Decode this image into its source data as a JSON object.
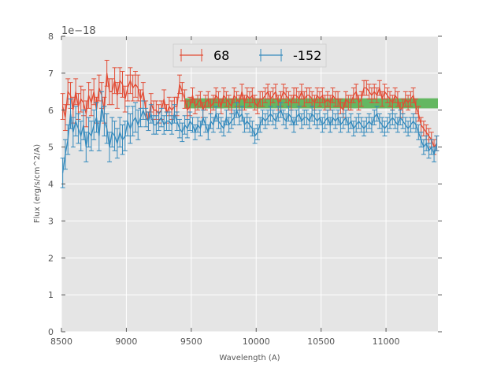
{
  "chart_data": {
    "type": "line",
    "style": "errorbar",
    "title": "",
    "xlabel": "Wavelength (A)",
    "ylabel": "Flux (erg/s/cm^2/A)",
    "y_offset_label": "1e−18",
    "xlim": [
      8500,
      11400
    ],
    "ylim": [
      0,
      8
    ],
    "xticks": [
      8500,
      9000,
      9500,
      10000,
      10500,
      11000
    ],
    "yticks": [
      0,
      1,
      2,
      3,
      4,
      5,
      6,
      7,
      8
    ],
    "grid": true,
    "legend_position": "top-center",
    "band": {
      "x_start": 9450,
      "x_end": 11400,
      "y_low": 6.05,
      "y_high": 6.32,
      "color": "#4daf4a"
    },
    "series": [
      {
        "name": "68",
        "color": "#e24a33",
        "x": [
          8510,
          8530,
          8550,
          8570,
          8590,
          8610,
          8630,
          8650,
          8670,
          8690,
          8710,
          8730,
          8750,
          8770,
          8790,
          8810,
          8830,
          8850,
          8870,
          8890,
          8910,
          8930,
          8950,
          8970,
          8990,
          9010,
          9030,
          9050,
          9070,
          9090,
          9110,
          9130,
          9150,
          9170,
          9190,
          9210,
          9230,
          9250,
          9270,
          9290,
          9310,
          9330,
          9350,
          9370,
          9390,
          9410,
          9430,
          9450,
          9470,
          9490,
          9510,
          9530,
          9550,
          9570,
          9590,
          9610,
          9630,
          9650,
          9670,
          9690,
          9710,
          9730,
          9750,
          9770,
          9790,
          9810,
          9830,
          9850,
          9870,
          9890,
          9910,
          9930,
          9950,
          9970,
          9990,
          10010,
          10030,
          10050,
          10070,
          10090,
          10110,
          10130,
          10150,
          10170,
          10190,
          10210,
          10230,
          10250,
          10270,
          10290,
          10310,
          10330,
          10350,
          10370,
          10390,
          10410,
          10430,
          10450,
          10470,
          10490,
          10510,
          10530,
          10550,
          10570,
          10590,
          10610,
          10630,
          10650,
          10670,
          10690,
          10710,
          10730,
          10750,
          10770,
          10790,
          10810,
          10830,
          10850,
          10870,
          10890,
          10910,
          10930,
          10950,
          10970,
          10990,
          11010,
          11030,
          11050,
          11070,
          11090,
          11110,
          11130,
          11150,
          11170,
          11190,
          11210,
          11230,
          11250,
          11270,
          11290,
          11310,
          11330,
          11350,
          11370,
          11390
        ],
        "values": [
          6.1,
          5.8,
          6.5,
          6.4,
          6.0,
          6.5,
          6.1,
          6.3,
          6.2,
          5.9,
          6.4,
          6.2,
          6.5,
          6.0,
          6.6,
          6.4,
          6.0,
          7.0,
          6.5,
          6.5,
          6.8,
          6.4,
          6.8,
          6.7,
          6.3,
          6.6,
          6.8,
          6.6,
          6.7,
          6.6,
          6.3,
          6.5,
          6.0,
          5.7,
          6.2,
          6.0,
          6.0,
          5.9,
          6.0,
          6.3,
          5.9,
          6.1,
          6.0,
          6.1,
          6.1,
          6.7,
          6.5,
          6.3,
          6.0,
          6.1,
          6.4,
          6.1,
          6.2,
          6.3,
          6.0,
          6.2,
          6.3,
          6.1,
          6.2,
          6.4,
          6.3,
          6.1,
          6.4,
          6.3,
          6.2,
          6.1,
          6.4,
          6.3,
          6.2,
          6.5,
          6.2,
          6.4,
          6.3,
          6.4,
          6.2,
          6.1,
          6.3,
          6.3,
          6.4,
          6.5,
          6.3,
          6.4,
          6.5,
          6.2,
          6.3,
          6.5,
          6.4,
          6.3,
          6.2,
          6.4,
          6.4,
          6.3,
          6.5,
          6.3,
          6.4,
          6.4,
          6.3,
          6.2,
          6.4,
          6.3,
          6.4,
          6.2,
          6.3,
          6.2,
          6.4,
          6.3,
          6.3,
          6.1,
          6.0,
          6.3,
          6.2,
          6.2,
          6.4,
          6.5,
          6.2,
          6.3,
          6.6,
          6.6,
          6.5,
          6.4,
          6.5,
          6.4,
          6.6,
          6.3,
          6.5,
          6.4,
          6.3,
          6.2,
          6.4,
          6.3,
          6.0,
          6.1,
          6.3,
          6.2,
          6.3,
          6.4,
          6.1,
          5.9,
          5.6,
          5.5,
          5.4,
          5.3,
          5.2,
          5.0,
          5.1
        ],
        "errors": [
          0.35,
          0.35,
          0.35,
          0.35,
          0.35,
          0.35,
          0.35,
          0.35,
          0.35,
          0.35,
          0.35,
          0.35,
          0.35,
          0.35,
          0.35,
          0.35,
          0.35,
          0.35,
          0.35,
          0.35,
          0.35,
          0.35,
          0.35,
          0.35,
          0.35,
          0.35,
          0.35,
          0.35,
          0.35,
          0.35,
          0.25,
          0.25,
          0.25,
          0.25,
          0.25,
          0.25,
          0.25,
          0.25,
          0.25,
          0.25,
          0.25,
          0.25,
          0.25,
          0.25,
          0.25,
          0.25,
          0.25,
          0.25,
          0.25,
          0.25,
          0.2,
          0.2,
          0.2,
          0.2,
          0.2,
          0.2,
          0.2,
          0.2,
          0.2,
          0.2,
          0.2,
          0.2,
          0.2,
          0.2,
          0.2,
          0.2,
          0.2,
          0.2,
          0.2,
          0.2,
          0.2,
          0.2,
          0.2,
          0.2,
          0.2,
          0.2,
          0.2,
          0.2,
          0.2,
          0.2,
          0.2,
          0.2,
          0.2,
          0.2,
          0.2,
          0.2,
          0.2,
          0.2,
          0.2,
          0.2,
          0.2,
          0.2,
          0.2,
          0.2,
          0.2,
          0.2,
          0.2,
          0.2,
          0.2,
          0.2,
          0.2,
          0.2,
          0.2,
          0.2,
          0.2,
          0.2,
          0.2,
          0.2,
          0.2,
          0.2,
          0.2,
          0.2,
          0.2,
          0.2,
          0.2,
          0.2,
          0.2,
          0.2,
          0.2,
          0.2,
          0.2,
          0.2,
          0.2,
          0.2,
          0.2,
          0.2,
          0.2,
          0.2,
          0.2,
          0.2,
          0.2,
          0.2,
          0.2,
          0.2,
          0.2,
          0.2,
          0.2,
          0.2,
          0.2,
          0.2,
          0.2,
          0.2,
          0.2,
          0.2,
          0.2
        ]
      },
      {
        "name": "-152",
        "color": "#348abd",
        "x": [
          8510,
          8530,
          8550,
          8570,
          8590,
          8610,
          8630,
          8650,
          8670,
          8690,
          8710,
          8730,
          8750,
          8770,
          8790,
          8810,
          8830,
          8850,
          8870,
          8890,
          8910,
          8930,
          8950,
          8970,
          8990,
          9010,
          9030,
          9050,
          9070,
          9090,
          9110,
          9130,
          9150,
          9170,
          9190,
          9210,
          9230,
          9250,
          9270,
          9290,
          9310,
          9330,
          9350,
          9370,
          9390,
          9410,
          9430,
          9450,
          9470,
          9490,
          9510,
          9530,
          9550,
          9570,
          9590,
          9610,
          9630,
          9650,
          9670,
          9690,
          9710,
          9730,
          9750,
          9770,
          9790,
          9810,
          9830,
          9850,
          9870,
          9890,
          9910,
          9930,
          9950,
          9970,
          9990,
          10010,
          10030,
          10050,
          10070,
          10090,
          10110,
          10130,
          10150,
          10170,
          10190,
          10210,
          10230,
          10250,
          10270,
          10290,
          10310,
          10330,
          10350,
          10370,
          10390,
          10410,
          10430,
          10450,
          10470,
          10490,
          10510,
          10530,
          10550,
          10570,
          10590,
          10610,
          10630,
          10650,
          10670,
          10690,
          10710,
          10730,
          10750,
          10770,
          10790,
          10810,
          10830,
          10850,
          10870,
          10890,
          10910,
          10930,
          10950,
          10970,
          10990,
          11010,
          11030,
          11050,
          11070,
          11090,
          11110,
          11130,
          11150,
          11170,
          11190,
          11210,
          11230,
          11250,
          11270,
          11290,
          11310,
          11330,
          11350,
          11370,
          11390
        ],
        "values": [
          4.3,
          4.8,
          5.2,
          5.9,
          5.4,
          5.7,
          5.5,
          5.3,
          5.6,
          5.0,
          5.4,
          5.3,
          5.6,
          5.8,
          5.3,
          6.1,
          5.7,
          5.5,
          5.0,
          5.4,
          5.3,
          5.1,
          5.4,
          5.2,
          5.3,
          5.7,
          5.5,
          5.7,
          5.8,
          5.6,
          5.8,
          6.0,
          5.8,
          5.7,
          5.9,
          5.6,
          5.6,
          5.7,
          5.8,
          5.6,
          5.7,
          5.7,
          5.6,
          5.9,
          5.7,
          5.5,
          5.4,
          5.6,
          5.5,
          5.7,
          5.6,
          5.4,
          5.6,
          5.5,
          5.8,
          5.6,
          5.4,
          5.7,
          5.6,
          5.9,
          5.7,
          5.6,
          5.5,
          5.8,
          5.6,
          5.7,
          5.8,
          6.0,
          5.8,
          5.9,
          5.6,
          5.7,
          5.6,
          5.5,
          5.3,
          5.4,
          5.6,
          5.8,
          5.7,
          5.8,
          5.9,
          5.8,
          5.7,
          5.9,
          6.0,
          5.8,
          5.7,
          5.9,
          5.8,
          5.6,
          5.8,
          5.9,
          5.7,
          5.8,
          5.8,
          5.7,
          5.9,
          5.8,
          5.7,
          5.8,
          5.6,
          5.7,
          5.8,
          5.6,
          5.8,
          5.7,
          5.8,
          5.6,
          5.7,
          5.8,
          5.6,
          5.7,
          5.5,
          5.6,
          5.7,
          5.6,
          5.5,
          5.6,
          5.7,
          5.6,
          5.8,
          5.9,
          5.7,
          5.6,
          5.5,
          5.6,
          5.7,
          5.8,
          5.7,
          5.6,
          5.8,
          5.7,
          5.6,
          5.5,
          5.6,
          5.7,
          5.6,
          5.4,
          5.2,
          5.0,
          5.1,
          4.9,
          5.0,
          4.8,
          5.1
        ],
        "errors": [
          0.4,
          0.4,
          0.4,
          0.4,
          0.4,
          0.4,
          0.4,
          0.4,
          0.4,
          0.4,
          0.4,
          0.4,
          0.4,
          0.4,
          0.4,
          0.4,
          0.4,
          0.4,
          0.4,
          0.4,
          0.4,
          0.4,
          0.4,
          0.4,
          0.4,
          0.4,
          0.4,
          0.4,
          0.4,
          0.4,
          0.25,
          0.25,
          0.25,
          0.25,
          0.25,
          0.25,
          0.25,
          0.25,
          0.25,
          0.25,
          0.25,
          0.25,
          0.25,
          0.25,
          0.25,
          0.25,
          0.25,
          0.25,
          0.25,
          0.25,
          0.2,
          0.2,
          0.2,
          0.2,
          0.2,
          0.2,
          0.2,
          0.2,
          0.2,
          0.2,
          0.2,
          0.2,
          0.2,
          0.2,
          0.2,
          0.2,
          0.2,
          0.2,
          0.2,
          0.2,
          0.2,
          0.2,
          0.2,
          0.2,
          0.2,
          0.2,
          0.2,
          0.2,
          0.2,
          0.2,
          0.2,
          0.2,
          0.2,
          0.2,
          0.2,
          0.2,
          0.2,
          0.2,
          0.2,
          0.2,
          0.2,
          0.2,
          0.2,
          0.2,
          0.2,
          0.2,
          0.2,
          0.2,
          0.2,
          0.2,
          0.2,
          0.2,
          0.2,
          0.2,
          0.2,
          0.2,
          0.2,
          0.2,
          0.2,
          0.2,
          0.2,
          0.2,
          0.2,
          0.2,
          0.2,
          0.2,
          0.2,
          0.2,
          0.2,
          0.2,
          0.2,
          0.2,
          0.2,
          0.2,
          0.2,
          0.2,
          0.2,
          0.2,
          0.2,
          0.2,
          0.2,
          0.2,
          0.2,
          0.2,
          0.2,
          0.2,
          0.2,
          0.2,
          0.2,
          0.2,
          0.2,
          0.2,
          0.2,
          0.2,
          0.2
        ]
      }
    ]
  }
}
